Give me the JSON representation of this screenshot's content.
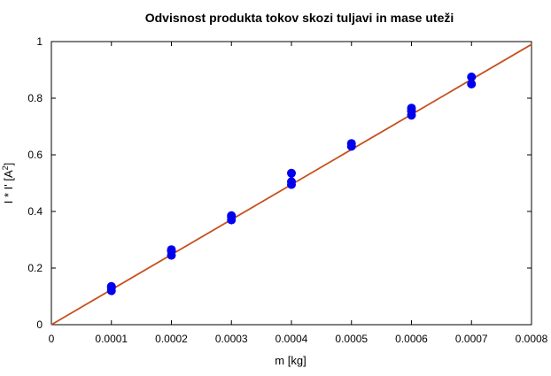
{
  "chart_data": {
    "type": "scatter",
    "title": "Odvisnost produkta tokov skozi tuljavi in mase uteži",
    "xlabel": "m [kg]",
    "ylabel_main": "I * I' [A",
    "ylabel_sup": "2",
    "ylabel_tail": "]",
    "xlim": [
      0,
      0.0008
    ],
    "ylim": [
      0,
      1
    ],
    "xticks": [
      0,
      0.0001,
      0.0002,
      0.0003,
      0.0004,
      0.0005,
      0.0006,
      0.0007,
      0.0008
    ],
    "xtick_labels": [
      "0",
      "0.0001",
      "0.0002",
      "0.0003",
      "0.0004",
      "0.0005",
      "0.0006",
      "0.0007",
      "0.0008"
    ],
    "yticks": [
      0,
      0.2,
      0.4,
      0.6,
      0.8,
      1
    ],
    "ytick_labels": [
      "0",
      "0.2",
      "0.4",
      "0.6",
      "0.8",
      "1"
    ],
    "grid": false,
    "series": [
      {
        "kind": "points",
        "color": "#0000ee",
        "x": [
          0.0001,
          0.0001,
          0.0001,
          0.0002,
          0.0002,
          0.0002,
          0.0003,
          0.0003,
          0.0003,
          0.0004,
          0.0004,
          0.0004,
          0.0005,
          0.0005,
          0.0006,
          0.0006,
          0.0006,
          0.0007,
          0.0007
        ],
        "y": [
          0.12,
          0.13,
          0.135,
          0.245,
          0.26,
          0.265,
          0.37,
          0.38,
          0.385,
          0.495,
          0.505,
          0.535,
          0.63,
          0.64,
          0.74,
          0.755,
          0.765,
          0.85,
          0.875
        ]
      },
      {
        "kind": "line",
        "color": "#c8501e",
        "x": [
          0,
          0.0008
        ],
        "y": [
          0,
          0.99
        ]
      }
    ]
  }
}
